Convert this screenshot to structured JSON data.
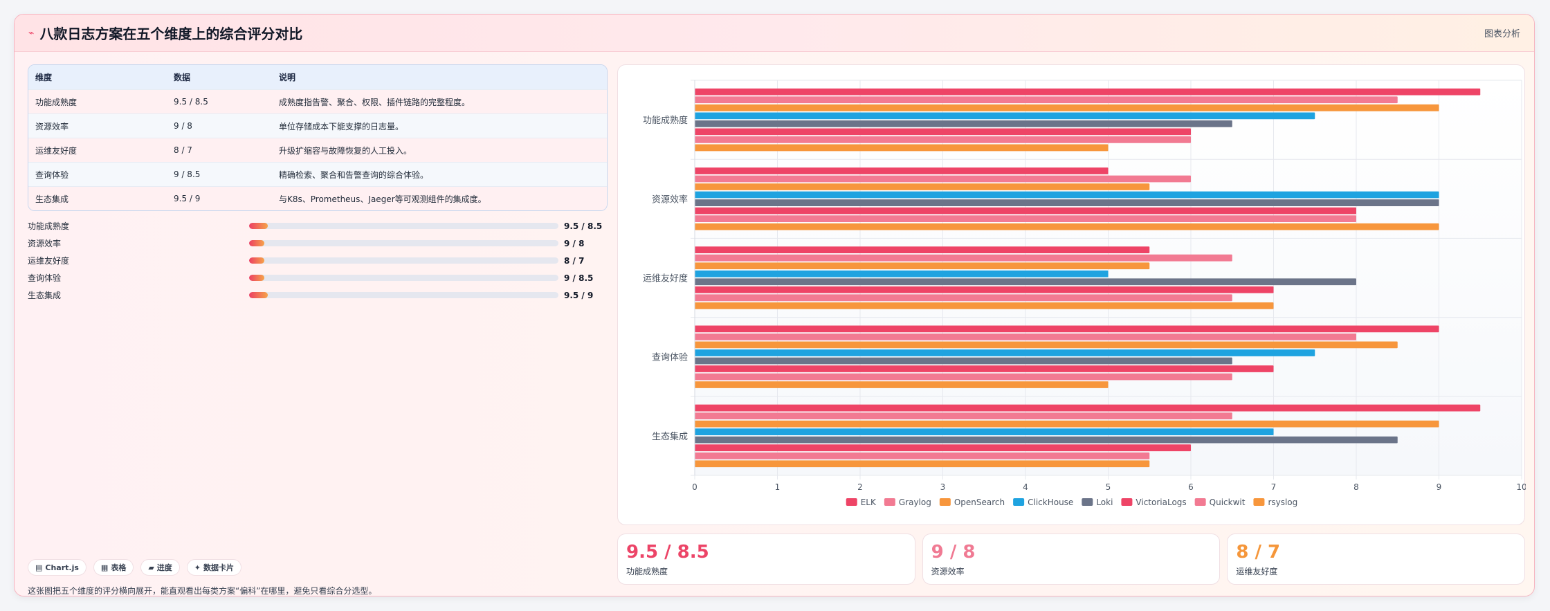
{
  "header": {
    "title": "八款日志方案在五个维度上的综合评分对比",
    "tag": "图表分析"
  },
  "table": {
    "columns": [
      "维度",
      "数据",
      "说明"
    ],
    "rows": [
      [
        "功能成熟度",
        "9.5 / 8.5",
        "成熟度指告警、聚合、权限、插件链路的完整程度。"
      ],
      [
        "资源效率",
        "9 / 8",
        "单位存储成本下能支撑的日志量。"
      ],
      [
        "运维友好度",
        "8 / 7",
        "升级扩缩容与故障恢复的人工投入。"
      ],
      [
        "查询体验",
        "9 / 8.5",
        "精确检索、聚合和告警查询的综合体验。"
      ],
      [
        "生态集成",
        "9.5 / 9",
        "与K8s、Prometheus、Jaeger等可观测组件的集成度。"
      ]
    ]
  },
  "progress": [
    {
      "label": "功能成熟度",
      "value": "9.5 / 8.5",
      "fill_fraction": 0.06
    },
    {
      "label": "资源效率",
      "value": "9 / 8",
      "fill_fraction": 0.05
    },
    {
      "label": "运维友好度",
      "value": "8 / 7",
      "fill_fraction": 0.05
    },
    {
      "label": "查询体验",
      "value": "9 / 8.5",
      "fill_fraction": 0.05
    },
    {
      "label": "生态集成",
      "value": "9.5 / 9",
      "fill_fraction": 0.06
    }
  ],
  "chips": [
    {
      "icon": "chart-icon",
      "glyph": "▤",
      "label": "Chart.js"
    },
    {
      "icon": "table-icon",
      "glyph": "▦",
      "label": "表格"
    },
    {
      "icon": "progress-icon",
      "glyph": "▰",
      "label": "进度"
    },
    {
      "icon": "card-icon",
      "glyph": "✦",
      "label": "数据卡片"
    }
  ],
  "note": "这张图把五个维度的评分横向展开，能直观看出每类方案“偏科”在哪里，避免只看综合分选型。",
  "stats": [
    {
      "value": "9.5 / 8.5",
      "label": "功能成熟度",
      "color": "#ec4467"
    },
    {
      "value": "9 / 8",
      "label": "资源效率",
      "color": "#f07a93"
    },
    {
      "value": "8 / 7",
      "label": "运维友好度",
      "color": "#f5963a"
    }
  ],
  "chart_data": {
    "type": "bar",
    "orientation": "horizontal",
    "categories": [
      "功能成熟度",
      "资源效率",
      "运维友好度",
      "查询体验",
      "生态集成"
    ],
    "xlim": [
      0,
      10
    ],
    "xticks": [
      0,
      1,
      2,
      3,
      4,
      5,
      6,
      7,
      8,
      9,
      10
    ],
    "grid": true,
    "legend": "bottom",
    "series": [
      {
        "name": "ELK",
        "color": "#ee4466",
        "values": [
          9.5,
          5,
          5.5,
          9,
          9.5
        ]
      },
      {
        "name": "Graylog",
        "color": "#f27a92",
        "values": [
          8.5,
          6,
          6.5,
          8,
          6.5
        ]
      },
      {
        "name": "OpenSearch",
        "color": "#f7963c",
        "values": [
          9,
          5.5,
          5.5,
          8.5,
          9
        ]
      },
      {
        "name": "ClickHouse",
        "color": "#1fa3e0",
        "values": [
          7.5,
          9,
          5,
          7.5,
          7
        ]
      },
      {
        "name": "Loki",
        "color": "#6b7489",
        "values": [
          6.5,
          9,
          8,
          6.5,
          8.5
        ]
      },
      {
        "name": "VictoriaLogs",
        "color": "#ee4466",
        "values": [
          6,
          8,
          7,
          7,
          6
        ]
      },
      {
        "name": "Quickwit",
        "color": "#f27a92",
        "values": [
          6,
          8,
          6.5,
          6.5,
          5.5
        ]
      },
      {
        "name": "rsyslog",
        "color": "#f7963c",
        "values": [
          5,
          9,
          7,
          5,
          5.5
        ]
      }
    ]
  }
}
